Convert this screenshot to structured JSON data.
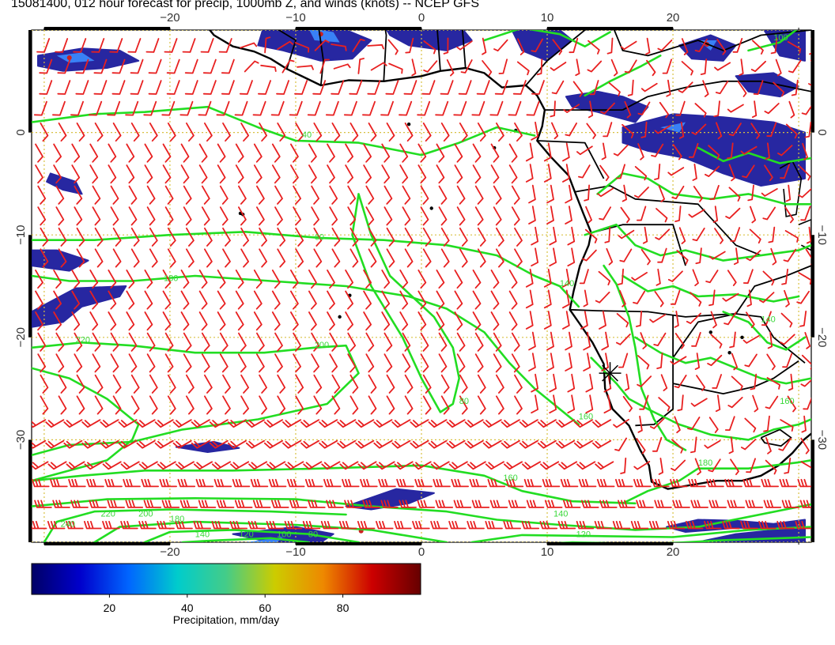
{
  "title": "15081400, 012 hour forecast for precip, 1000mb Z, and winds (knots) -- NCEP GFS",
  "map": {
    "lon_range": [
      -31,
      31
    ],
    "lat_range": [
      -40,
      10
    ],
    "lon_ticks": [
      -20,
      -10,
      0,
      10,
      20
    ],
    "lat_ticks": [
      0,
      -10,
      -20,
      -30
    ],
    "lon_tick_labels": [
      "−20",
      "−10",
      "0",
      "10",
      "20"
    ],
    "lat_tick_labels": [
      "0",
      "−10",
      "−20",
      "−30"
    ],
    "grid_lons": [
      -30,
      -20,
      -10,
      0,
      10,
      20,
      30
    ],
    "grid_lats": [
      10,
      0,
      -10,
      -20,
      -30,
      -40
    ],
    "grid_style": "dotted",
    "marker": {
      "type": "asterisk",
      "lon": 15,
      "lat": -23.5
    }
  },
  "colors": {
    "contour": "#22dd22",
    "wind_barb": "#e82020",
    "coastline": "#000000",
    "grid": "#d8c040",
    "precip_dark": "#1c1c9c",
    "precip_light": "#3c8cff"
  },
  "contours": {
    "units": "1000mb Z (m)",
    "labels": [
      {
        "text": "40",
        "lon": -9.5,
        "lat": -0.5
      },
      {
        "text": "60",
        "lon": -8.5,
        "lat": -10.5
      },
      {
        "text": "180",
        "lon": -20.5,
        "lat": -14.5
      },
      {
        "text": "200",
        "lon": -8.5,
        "lat": -21
      },
      {
        "text": "220",
        "lon": -27.5,
        "lat": -20.5
      },
      {
        "text": "80",
        "lon": 3,
        "lat": -26.5
      },
      {
        "text": "140",
        "lon": 11,
        "lat": -15
      },
      {
        "text": "160",
        "lon": 12.5,
        "lat": -28
      },
      {
        "text": "160",
        "lon": 6.5,
        "lat": -34
      },
      {
        "text": "140",
        "lon": 10.5,
        "lat": -37.5
      },
      {
        "text": "120",
        "lon": 12.3,
        "lat": -39.5
      },
      {
        "text": "180",
        "lon": 22,
        "lat": -32.5
      },
      {
        "text": "160",
        "lon": 28.5,
        "lat": -26.5
      },
      {
        "text": "140",
        "lon": 27,
        "lat": -18.5
      },
      {
        "text": "140",
        "lon": -18,
        "lat": -39.5
      },
      {
        "text": "120",
        "lon": -14.5,
        "lat": -39.5
      },
      {
        "text": "100",
        "lon": -11.5,
        "lat": -39.5
      },
      {
        "text": "80",
        "lon": -9,
        "lat": -39.5
      },
      {
        "text": "240",
        "lon": -28.7,
        "lat": -38.5
      },
      {
        "text": "220",
        "lon": -25.5,
        "lat": -37.5
      },
      {
        "text": "200",
        "lon": -22.5,
        "lat": -37.5
      },
      {
        "text": "180",
        "lon": -20,
        "lat": -38
      },
      {
        "text": "100",
        "lon": 28,
        "lat": 9
      }
    ]
  },
  "colorbar": {
    "label": "Precipitation, mm/day",
    "min": 0,
    "max": 100,
    "ticks": [
      20,
      40,
      60,
      80
    ],
    "tick_labels": [
      "20",
      "40",
      "60",
      "80"
    ],
    "stops": [
      "#000066",
      "#0000cc",
      "#0066ff",
      "#00cccc",
      "#44cc88",
      "#cccc00",
      "#ee8800",
      "#cc0000",
      "#660000"
    ]
  }
}
